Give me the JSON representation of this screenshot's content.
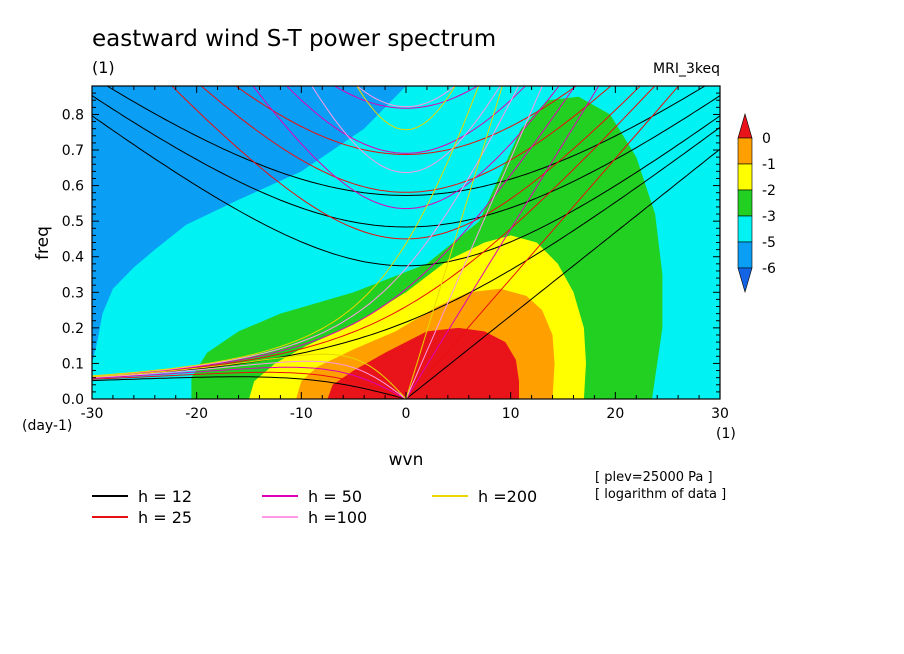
{
  "chart_data": {
    "type": "heatmap",
    "title": "eastward wind S-T power spectrum",
    "subtitle_left": "(1)",
    "subtitle_right": "MRI_3keq",
    "xlabel": "wvn",
    "ylabel": "freq",
    "x_unit_label": "(1)",
    "y_unit_label": "(day-1)",
    "xlim": [
      -30,
      30
    ],
    "ylim": [
      0,
      0.88
    ],
    "x_ticks": [
      -30,
      -20,
      -10,
      0,
      10,
      20,
      30
    ],
    "x_tick_labels": [
      "-30",
      "-20",
      "-10",
      "0",
      "10",
      "20",
      "30"
    ],
    "y_ticks": [
      0,
      0.1,
      0.2,
      0.3,
      0.4,
      0.5,
      0.6,
      0.7,
      0.8
    ],
    "y_tick_labels": [
      "0.0",
      "0.1",
      "0.2",
      "0.3",
      "0.4",
      "0.5",
      "0.6",
      "0.7",
      "0.8"
    ],
    "colorbar": {
      "levels": [
        "0",
        "-1",
        "-2",
        "-3",
        "-5",
        "-6"
      ],
      "colors": [
        "#e8141a",
        "#ff9f00",
        "#ffff00",
        "#22d022",
        "#00f2f2",
        "#0a9ff5",
        "#1464e6"
      ]
    },
    "contour_fill_colors": [
      "#1464e6",
      "#0a9ff5",
      "#00f2f2",
      "#22d022",
      "#ffff00",
      "#ff9f00",
      "#e8141a"
    ],
    "dispersion_curves": [
      {
        "label": "h = 12",
        "h": 12,
        "color": "#000000"
      },
      {
        "label": "h = 25",
        "h": 25,
        "color": "#e81010"
      },
      {
        "label": "h = 50",
        "h": 50,
        "color": "#e000b8"
      },
      {
        "label": "h =100",
        "h": 100,
        "color": "#ff99e6"
      },
      {
        "label": "h =200",
        "h": 200,
        "color": "#e8d800"
      }
    ],
    "annotations": [
      "[ plev=25000 Pa ]",
      "[ logarithm of data ]"
    ]
  }
}
